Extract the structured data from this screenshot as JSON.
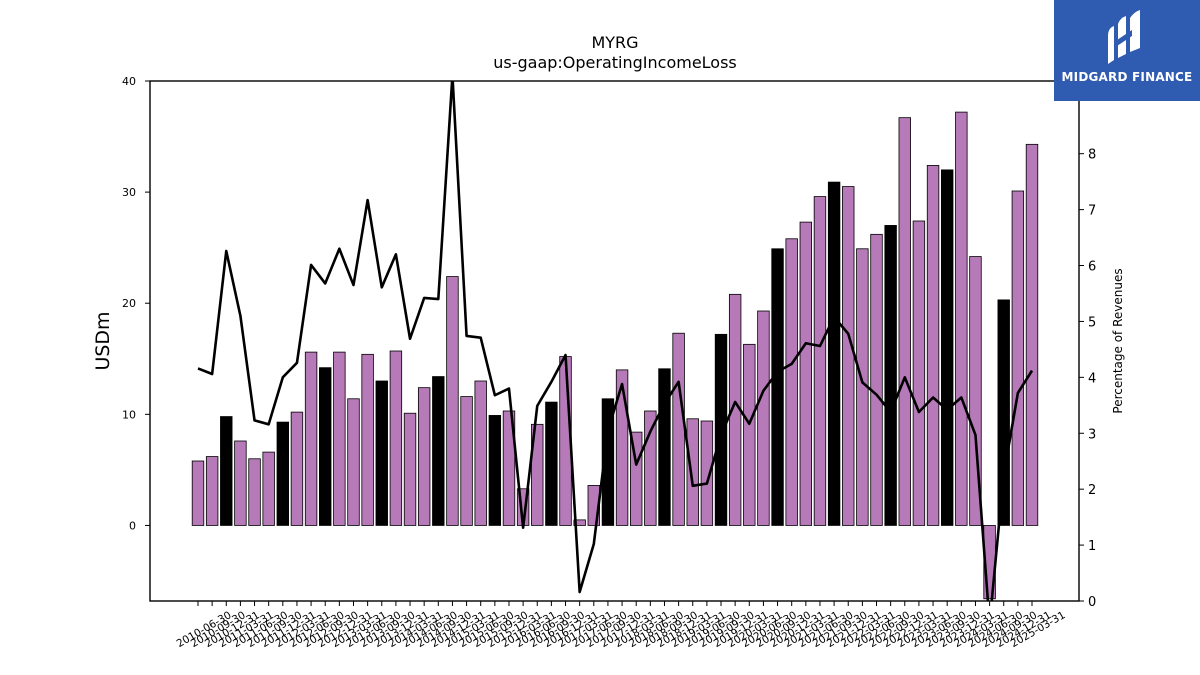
{
  "brand": {
    "name": "MIDGARD FINANCE",
    "icon": "midgard-logo-icon",
    "background": "#2f5bb0"
  },
  "chart_data": {
    "type": "bar",
    "title": "MYRG",
    "subtitle": "us-gaap:OperatingIncomeLoss",
    "ylabel": "USDm",
    "y2label": "Percentage of Revenues",
    "ylim": [
      -6.8,
      40
    ],
    "y2lim": [
      0,
      9.3
    ],
    "yticks": [
      0,
      10,
      20,
      30,
      40
    ],
    "y2ticks": [
      0,
      1,
      2,
      3,
      4,
      5,
      6,
      7,
      8
    ],
    "colors": {
      "bar": "#b77ab9",
      "bar_highlight": "#000000",
      "line": "#000000"
    },
    "categories": [
      "2010-06-30",
      "2010-09-30",
      "2010-12-31",
      "2011-03-31",
      "2011-06-30",
      "2011-09-30",
      "2011-12-31",
      "2012-03-31",
      "2012-06-30",
      "2012-09-30",
      "2012-12-31",
      "2013-03-31",
      "2013-06-30",
      "2013-09-30",
      "2013-12-31",
      "2014-03-31",
      "2014-06-30",
      "2014-09-30",
      "2014-12-31",
      "2015-03-31",
      "2015-06-30",
      "2015-09-30",
      "2015-12-31",
      "2016-03-31",
      "2016-06-30",
      "2016-09-30",
      "2016-12-31",
      "2017-03-31",
      "2017-06-30",
      "2017-09-30",
      "2017-12-31",
      "2018-03-31",
      "2018-06-30",
      "2018-09-30",
      "2018-12-31",
      "2019-03-31",
      "2019-06-30",
      "2019-09-30",
      "2019-12-31",
      "2020-03-31",
      "2020-06-30",
      "2020-09-30",
      "2020-12-31",
      "2021-03-31",
      "2021-06-30",
      "2021-09-30",
      "2021-12-31",
      "2022-03-31",
      "2022-06-30",
      "2022-09-30",
      "2022-12-31",
      "2023-03-31",
      "2023-06-30",
      "2023-09-30",
      "2023-12-31",
      "2024-03-31",
      "2024-06-30",
      "2024-09-30",
      "2024-12-31",
      "2025-03-31"
    ],
    "series": [
      {
        "type": "bar",
        "axis": "left",
        "values": [
          5.8,
          6.2,
          9.8,
          7.6,
          6.0,
          6.6,
          9.3,
          10.2,
          15.6,
          14.2,
          15.6,
          11.4,
          15.4,
          13.0,
          15.7,
          10.1,
          12.4,
          13.4,
          22.4,
          11.6,
          13.0,
          9.9,
          10.3,
          3.3,
          9.1,
          11.1,
          15.2,
          0.5,
          3.6,
          11.4,
          14.0,
          8.4,
          10.3,
          14.1,
          17.3,
          9.6,
          9.4,
          17.2,
          20.8,
          16.3,
          19.3,
          24.9,
          25.8,
          27.3,
          29.6,
          30.9,
          30.5,
          24.9,
          26.2,
          27.0,
          36.7,
          27.4,
          32.4,
          32.0,
          37.2,
          24.2,
          -6.6,
          20.3,
          30.1,
          34.3
        ]
      },
      {
        "type": "line",
        "axis": "right",
        "values": [
          4.16,
          4.06,
          6.26,
          5.1,
          3.23,
          3.16,
          4.0,
          4.26,
          6.01,
          5.68,
          6.3,
          5.65,
          7.17,
          5.61,
          6.2,
          4.69,
          5.42,
          5.4,
          9.4,
          4.74,
          4.71,
          3.68,
          3.8,
          1.31,
          3.49,
          3.92,
          4.4,
          0.16,
          1.02,
          3.05,
          3.88,
          2.44,
          3.03,
          3.53,
          3.92,
          2.06,
          2.1,
          2.97,
          3.56,
          3.17,
          3.76,
          4.1,
          4.24,
          4.61,
          4.56,
          5.08,
          4.78,
          3.91,
          3.69,
          3.38,
          4.0,
          3.38,
          3.64,
          3.42,
          3.64,
          2.97,
          -0.4,
          2.26,
          3.72,
          4.12
        ]
      }
    ],
    "highlight_categories": [
      "2010-12-31",
      "2011-12-31",
      "2012-09-30",
      "2013-09-30",
      "2014-09-30",
      "2015-09-30",
      "2016-09-30",
      "2017-09-30",
      "2018-09-30",
      "2019-09-30",
      "2020-09-30",
      "2021-09-30",
      "2022-09-30",
      "2023-09-30",
      "2024-09-30"
    ],
    "grid": false,
    "legend": "none"
  }
}
